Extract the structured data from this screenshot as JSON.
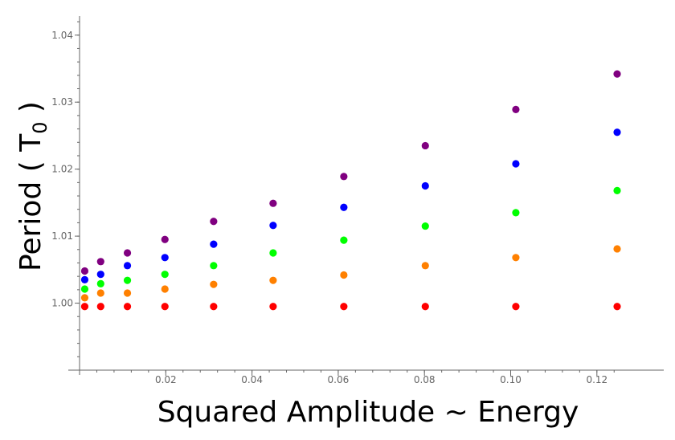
{
  "chart_data": {
    "type": "scatter",
    "title": "",
    "xlabel": "Squared Amplitude ~ Energy",
    "ylabel_main": "Period ( T",
    "ylabel_sub": "0",
    "ylabel_end": " )",
    "xlim": [
      0,
      0.125
    ],
    "ylim": [
      0.99,
      1.042
    ],
    "xticks": [
      0.02,
      0.04,
      0.06,
      0.08,
      0.1,
      0.12
    ],
    "xtick_labels": [
      "0.02",
      "0.04",
      "0.06",
      "0.08",
      "0.10",
      "0.12"
    ],
    "yticks": [
      1.0,
      1.01,
      1.02,
      1.03,
      1.04
    ],
    "ytick_labels": [
      "1.00",
      "1.01",
      "1.02",
      "1.03",
      "1.04"
    ],
    "grid": false,
    "x": [
      0.0012,
      0.0049,
      0.0111,
      0.0198,
      0.0311,
      0.0449,
      0.0613,
      0.0802,
      0.1012,
      0.1247
    ],
    "series": [
      {
        "color": "#ff0000",
        "values": [
          0.9995,
          0.9995,
          0.9995,
          0.9995,
          0.9995,
          0.9995,
          0.9995,
          0.9995,
          0.9995,
          0.9995
        ]
      },
      {
        "color": "#ff8000",
        "values": [
          1.0008,
          1.0015,
          1.0015,
          1.0021,
          1.0028,
          1.0034,
          1.0042,
          1.0056,
          1.0068,
          1.0081
        ]
      },
      {
        "color": "#00ff00",
        "values": [
          1.0021,
          1.0029,
          1.0034,
          1.0043,
          1.0056,
          1.0075,
          1.0094,
          1.0115,
          1.0135,
          1.0168
        ]
      },
      {
        "color": "#0000ff",
        "values": [
          1.0035,
          1.0043,
          1.0056,
          1.0068,
          1.0088,
          1.0116,
          1.0143,
          1.0175,
          1.0208,
          1.0255
        ]
      },
      {
        "color": "#800080",
        "values": [
          1.0048,
          1.0062,
          1.0075,
          1.0095,
          1.0122,
          1.0149,
          1.0189,
          1.0235,
          1.0289,
          1.0342
        ]
      }
    ]
  }
}
